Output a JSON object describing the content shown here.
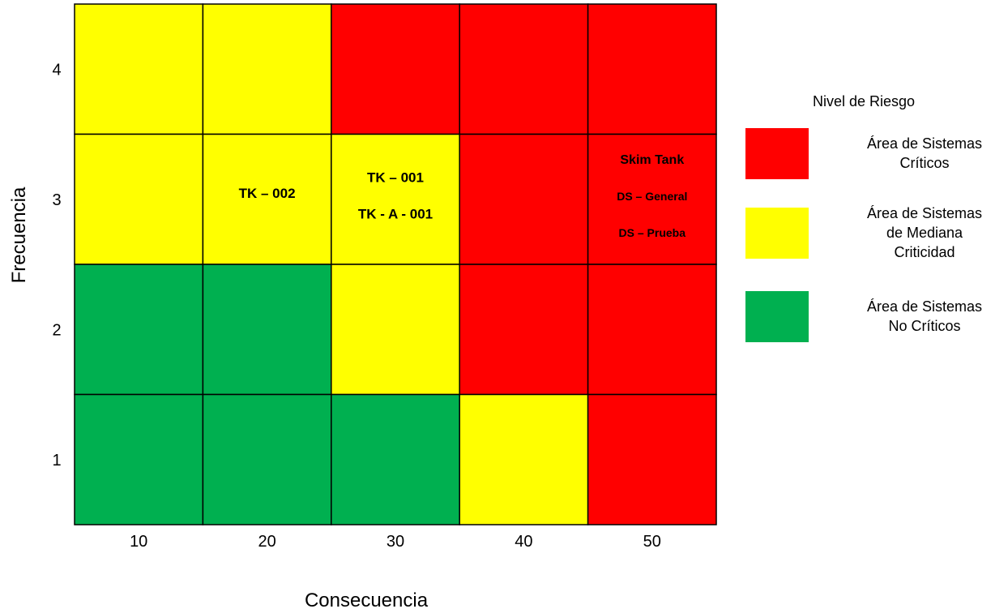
{
  "chart_data": {
    "type": "heatmap",
    "xlabel": "Consecuencia",
    "ylabel": "Frecuencia",
    "x_categories": [
      "10",
      "20",
      "30",
      "40",
      "50"
    ],
    "y_categories": [
      "1",
      "2",
      "3",
      "4"
    ],
    "levels": {
      "red": "#ff0000",
      "yellow": "#ffff00",
      "green": "#00b050"
    },
    "matrix": [
      {
        "frecuencia": "4",
        "cells": [
          "yellow",
          "yellow",
          "red",
          "red",
          "red"
        ]
      },
      {
        "frecuencia": "3",
        "cells": [
          "yellow",
          "yellow",
          "yellow",
          "red",
          "red"
        ]
      },
      {
        "frecuencia": "2",
        "cells": [
          "green",
          "green",
          "yellow",
          "red",
          "red"
        ]
      },
      {
        "frecuencia": "1",
        "cells": [
          "green",
          "green",
          "green",
          "yellow",
          "red"
        ]
      }
    ],
    "annotations": [
      {
        "consecuencia": "20",
        "frecuencia": "3",
        "lines": [
          "TK – 002"
        ]
      },
      {
        "consecuencia": "30",
        "frecuencia": "3",
        "lines": [
          "TK – 001",
          "TK - A - 001"
        ]
      },
      {
        "consecuencia": "50",
        "frecuencia": "3",
        "lines": [
          "Skim Tank",
          "DS – General",
          "DS – Prueba"
        ]
      }
    ],
    "legend": {
      "title": "Nivel de Riesgo",
      "position": "right",
      "items": [
        {
          "level": "red",
          "lines": [
            "Área de Sistemas",
            "Críticos"
          ]
        },
        {
          "level": "yellow",
          "lines": [
            "Área de Sistemas",
            "de Mediana",
            "Criticidad"
          ]
        },
        {
          "level": "green",
          "lines": [
            "Área de Sistemas",
            "No Críticos"
          ]
        }
      ]
    }
  }
}
